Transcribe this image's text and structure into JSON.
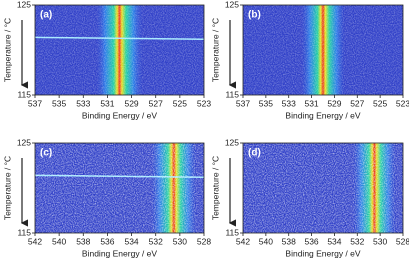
{
  "chart_data": [
    {
      "type": "heatmap",
      "label": "(a)",
      "xlabel": "Binding Energy / eV",
      "ylabel": "Temperature / °C",
      "xlim": [
        537,
        523
      ],
      "xticks": [
        537,
        535,
        533,
        531,
        529,
        527,
        525,
        523
      ],
      "ylim": [
        115,
        125
      ],
      "yticks": [
        125,
        115
      ],
      "peak": 530,
      "streak": true,
      "noise": 0.35
    },
    {
      "type": "heatmap",
      "label": "(b)",
      "xlabel": "Binding Energy / eV",
      "ylabel": "Temperature / °C",
      "xlim": [
        537,
        523
      ],
      "xticks": [
        537,
        535,
        533,
        531,
        529,
        527,
        525,
        523
      ],
      "ylim": [
        115,
        125
      ],
      "yticks": [
        125,
        115
      ],
      "peak": 530,
      "streak": false,
      "noise": 0.35
    },
    {
      "type": "heatmap",
      "label": "(c)",
      "xlabel": "Binding Energy / eV",
      "ylabel": "Temperature / °C",
      "xlim": [
        542,
        528
      ],
      "xticks": [
        542,
        540,
        538,
        536,
        534,
        532,
        530,
        528
      ],
      "ylim": [
        115,
        125
      ],
      "yticks": [
        125,
        115
      ],
      "peak": 530.5,
      "streak": true,
      "noise": 0.6
    },
    {
      "type": "heatmap",
      "label": "(d)",
      "xlabel": "Binding Energy / eV",
      "ylabel": "Temperature / °C",
      "xlim": [
        542,
        528
      ],
      "xticks": [
        542,
        540,
        538,
        536,
        534,
        532,
        530,
        528
      ],
      "ylim": [
        115,
        125
      ],
      "yticks": [
        125,
        115
      ],
      "peak": 530.5,
      "streak": false,
      "noise": 0.6
    }
  ]
}
